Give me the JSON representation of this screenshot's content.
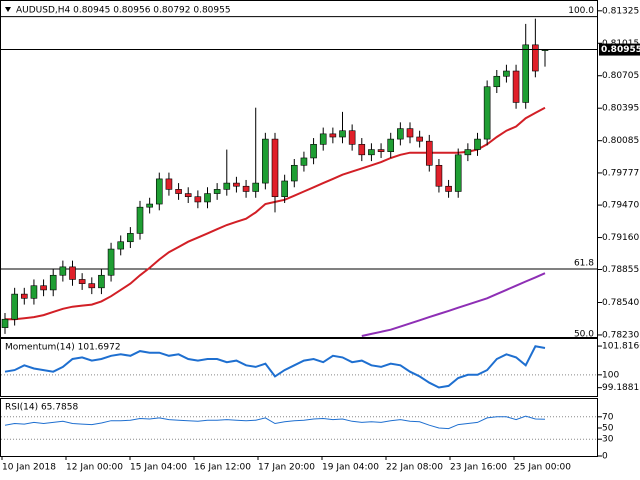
{
  "chart_data": [
    {
      "type": "candlestick",
      "title": "AUDUSD,H4  0.80945 0.80956 0.80792 0.80955",
      "open": [
        0.783,
        0.7838,
        0.7862,
        0.7858,
        0.787,
        0.7866,
        0.788,
        0.7888,
        0.7876,
        0.7872,
        0.7868,
        0.788,
        0.7905,
        0.7912,
        0.792,
        0.7945,
        0.7948,
        0.7972,
        0.7962,
        0.7958,
        0.7955,
        0.795,
        0.7958,
        0.7962,
        0.7968,
        0.7965,
        0.796,
        0.7968,
        0.801,
        0.7955,
        0.797,
        0.7985,
        0.7992,
        0.8005,
        0.8015,
        0.8012,
        0.8018,
        0.8005,
        0.7995,
        0.8,
        0.7998,
        0.801,
        0.802,
        0.8012,
        0.8008,
        0.7985,
        0.7965,
        0.796,
        0.7995,
        0.8,
        0.801,
        0.806,
        0.807,
        0.8075,
        0.8045,
        0.81,
        0.80945
      ],
      "high": [
        0.7844,
        0.7868,
        0.7868,
        0.7876,
        0.7876,
        0.7886,
        0.7894,
        0.7894,
        0.7882,
        0.7878,
        0.7886,
        0.7911,
        0.7918,
        0.7926,
        0.7951,
        0.7954,
        0.7978,
        0.7978,
        0.7968,
        0.7964,
        0.7961,
        0.7964,
        0.7968,
        0.8,
        0.7974,
        0.7971,
        0.804,
        0.8016,
        0.8016,
        0.7976,
        0.7991,
        0.7998,
        0.8011,
        0.8021,
        0.8021,
        0.8036,
        0.8024,
        0.8011,
        0.8006,
        0.8006,
        0.8016,
        0.8026,
        0.8026,
        0.8018,
        0.8014,
        0.7991,
        0.7971,
        0.8001,
        0.8006,
        0.8016,
        0.8066,
        0.8076,
        0.8081,
        0.8081,
        0.812,
        0.8125,
        0.80956
      ],
      "low": [
        0.7824,
        0.7832,
        0.7852,
        0.7852,
        0.786,
        0.786,
        0.7874,
        0.787,
        0.7866,
        0.7862,
        0.7862,
        0.7874,
        0.7899,
        0.7906,
        0.7914,
        0.7939,
        0.7942,
        0.7956,
        0.7952,
        0.7949,
        0.7944,
        0.7944,
        0.7952,
        0.7956,
        0.7959,
        0.7954,
        0.7954,
        0.7962,
        0.794,
        0.7949,
        0.7964,
        0.7979,
        0.7986,
        0.7999,
        0.8006,
        0.8006,
        0.7999,
        0.7989,
        0.7989,
        0.7992,
        0.7992,
        0.8004,
        0.8006,
        0.8002,
        0.7979,
        0.7959,
        0.7954,
        0.7954,
        0.7989,
        0.7994,
        0.8004,
        0.8054,
        0.8064,
        0.8039,
        0.8039,
        0.8069,
        0.80792
      ],
      "close": [
        0.7838,
        0.7862,
        0.7858,
        0.787,
        0.7866,
        0.788,
        0.7888,
        0.7876,
        0.7872,
        0.7868,
        0.788,
        0.7905,
        0.7912,
        0.792,
        0.7945,
        0.7948,
        0.7972,
        0.7962,
        0.7958,
        0.7955,
        0.795,
        0.7958,
        0.7962,
        0.7968,
        0.7965,
        0.796,
        0.7968,
        0.801,
        0.7955,
        0.797,
        0.7985,
        0.7992,
        0.8005,
        0.8015,
        0.8012,
        0.8018,
        0.8005,
        0.7995,
        0.8,
        0.7998,
        0.801,
        0.802,
        0.8012,
        0.8008,
        0.7985,
        0.7965,
        0.796,
        0.7995,
        0.8,
        0.801,
        0.806,
        0.807,
        0.8075,
        0.8045,
        0.81,
        0.8075,
        0.80955
      ],
      "up_color": "#1f9e33",
      "down_color": "#e0202a",
      "series": [
        {
          "color": "#d21f26",
          "values": [
            0.7838,
            0.7838,
            0.7839,
            0.784,
            0.7842,
            0.7845,
            0.7848,
            0.785,
            0.7851,
            0.7852,
            0.7855,
            0.786,
            0.7866,
            0.7872,
            0.788,
            0.7887,
            0.7895,
            0.7902,
            0.7907,
            0.7912,
            0.7916,
            0.792,
            0.7924,
            0.7928,
            0.7931,
            0.7934,
            0.794,
            0.7948,
            0.795,
            0.7952,
            0.7956,
            0.796,
            0.7964,
            0.7968,
            0.7972,
            0.7976,
            0.7979,
            0.7982,
            0.7985,
            0.7988,
            0.7992,
            0.7995,
            0.7997,
            0.7997,
            0.7997,
            0.7997,
            0.7997,
            0.7997,
            0.7998,
            0.8,
            0.8005,
            0.8012,
            0.8018,
            0.8022,
            0.803,
            0.8035,
            0.804
          ]
        },
        {
          "color": "#8e2fb5",
          "values": [
            null,
            null,
            null,
            null,
            null,
            null,
            null,
            null,
            null,
            null,
            null,
            null,
            null,
            null,
            null,
            null,
            null,
            null,
            null,
            null,
            null,
            null,
            null,
            null,
            null,
            null,
            null,
            null,
            null,
            null,
            null,
            null,
            null,
            null,
            null,
            null,
            null,
            0.7822,
            0.7824,
            0.7826,
            0.7828,
            0.7831,
            0.7834,
            0.7837,
            0.784,
            0.7843,
            0.7846,
            0.7849,
            0.7852,
            0.7855,
            0.7858,
            0.7862,
            0.7866,
            0.787,
            0.7874,
            0.7878,
            0.7882
          ]
        }
      ],
      "fib_levels": [
        {
          "label": "100.0",
          "value": 0.8127
        },
        {
          "label": "61.8",
          "value": 0.7886
        },
        {
          "label": "50.0",
          "value": 0.78115
        }
      ],
      "last_price": {
        "value": 0.80955,
        "label": "0.80955"
      },
      "ylim": [
        0.7822,
        0.8139
      ],
      "yticks": [
        0.81325,
        0.81015,
        0.80705,
        0.80395,
        0.80085,
        0.79777,
        {
          "value": 0.7947,
          "label": "0.79470"
        },
        {
          "value": 0.7916,
          "label": "0.79160"
        },
        0.78855,
        {
          "value": 0.7854,
          "label": "0.78540"
        },
        {
          "value": 0.7823,
          "label": "0.78230"
        }
      ],
      "xtick_labels": [
        "10 Jan 2018",
        "12 Jan 00:00",
        "15 Jan 04:00",
        "16 Jan 12:00",
        "17 Jan 20:00",
        "19 Jan 04:00",
        "22 Jan 08:00",
        "23 Jan 16:00",
        "25 Jan 00:00"
      ]
    },
    {
      "type": "line",
      "title": "Momentum(14) 101.6972",
      "color": "#1e6fd0",
      "values": [
        100.2,
        100.3,
        100.6,
        100.4,
        100.3,
        100.2,
        100.5,
        101.0,
        101.1,
        100.9,
        101.0,
        101.2,
        101.3,
        101.2,
        101.5,
        101.4,
        101.4,
        101.2,
        101.3,
        101.0,
        100.9,
        101.0,
        101.0,
        100.8,
        100.9,
        100.6,
        100.5,
        100.7,
        99.9,
        100.3,
        100.6,
        100.9,
        101.0,
        100.8,
        101.2,
        101.1,
        100.8,
        100.9,
        100.6,
        100.5,
        100.7,
        100.6,
        100.2,
        99.9,
        99.5,
        99.2,
        99.3,
        99.8,
        100.0,
        100.0,
        100.3,
        101.0,
        101.3,
        101.1,
        100.6,
        101.8,
        101.6972
      ],
      "ylim": [
        98.6,
        102.2
      ],
      "yticks": [
        101.8166,
        100,
        99.1881
      ],
      "dotted_levels": [
        100
      ]
    },
    {
      "type": "line",
      "title": "RSI(14) 65.7858",
      "color": "#1e6fd0",
      "values": [
        55,
        58,
        57,
        60,
        58,
        60,
        62,
        58,
        57,
        56,
        59,
        63,
        63,
        64,
        67,
        66,
        68,
        65,
        64,
        63,
        62,
        64,
        64,
        65,
        64,
        63,
        64,
        68,
        58,
        61,
        63,
        64,
        66,
        67,
        65,
        66,
        62,
        60,
        61,
        60,
        63,
        65,
        62,
        61,
        55,
        50,
        49,
        56,
        58,
        60,
        68,
        70,
        70,
        65,
        71,
        66,
        65.7858
      ],
      "ylim": [
        0,
        100
      ],
      "yticks": [
        70,
        50,
        30,
        0
      ],
      "dotted_levels": [
        70,
        30
      ]
    }
  ]
}
